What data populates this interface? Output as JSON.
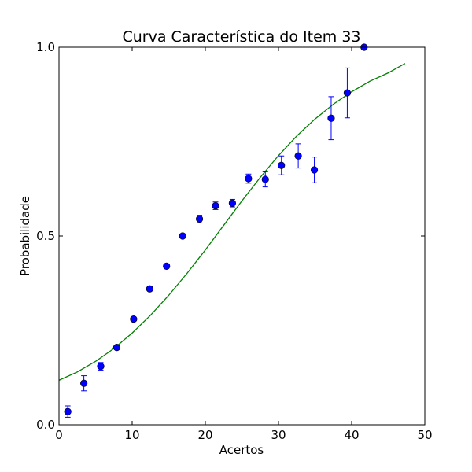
{
  "colors": {
    "points": "#0000ff",
    "curve": "#008000",
    "frame": "#000000"
  },
  "chart_data": {
    "type": "scatter",
    "title": "Curva Característica do Item 33",
    "xlabel": "Acertos",
    "ylabel": "Probabilidade",
    "xlim": [
      0,
      50
    ],
    "ylim": [
      0.0,
      1.0
    ],
    "xticks": [
      0,
      10,
      20,
      30,
      40,
      50
    ],
    "xtick_labels": [
      "0",
      "10",
      "20",
      "30",
      "40",
      "50"
    ],
    "yticks": [
      0.0,
      0.5,
      1.0
    ],
    "ytick_labels": [
      "0.0",
      "0.5",
      "1.0"
    ],
    "grid": false,
    "series": [
      {
        "kind": "points-with-error-bars",
        "x": [
          1.2,
          3.4,
          5.7,
          7.9,
          10.2,
          12.4,
          14.7,
          16.9,
          19.2,
          21.4,
          23.7,
          25.9,
          28.2,
          30.4,
          32.7,
          34.9,
          37.2,
          39.4,
          41.7
        ],
        "y": [
          0.035,
          0.11,
          0.155,
          0.205,
          0.28,
          0.36,
          0.42,
          0.5,
          0.545,
          0.58,
          0.587,
          0.652,
          0.65,
          0.687,
          0.712,
          0.675,
          0.812,
          0.879,
          1.0
        ],
        "yerr": [
          0.015,
          0.02,
          0.01,
          0.005,
          0.005,
          0.005,
          0.005,
          0.005,
          0.01,
          0.01,
          0.01,
          0.012,
          0.02,
          0.025,
          0.032,
          0.034,
          0.057,
          0.066,
          0.0
        ]
      },
      {
        "kind": "fitted-curve",
        "x": [
          0,
          2.5,
          5,
          7.5,
          10,
          12.5,
          15,
          17.5,
          20,
          22.5,
          25,
          27.5,
          30,
          32.5,
          35,
          37.5,
          40,
          42.5,
          45,
          47.3
        ],
        "y": [
          0.118,
          0.14,
          0.168,
          0.202,
          0.243,
          0.29,
          0.343,
          0.401,
          0.463,
          0.528,
          0.593,
          0.655,
          0.713,
          0.765,
          0.81,
          0.849,
          0.882,
          0.91,
          0.932,
          0.957
        ]
      }
    ]
  }
}
